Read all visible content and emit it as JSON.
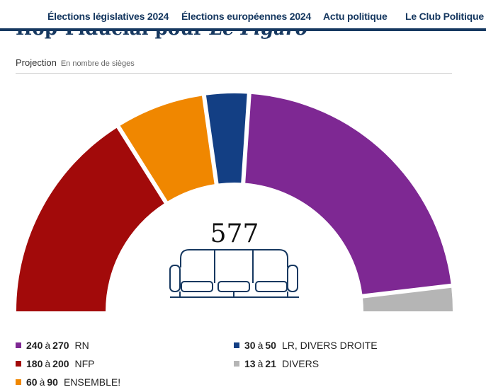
{
  "nav": {
    "items": [
      "Élections législatives 2024",
      "Élections européennes 2024",
      "Actu politique",
      "Le Club Politique"
    ]
  },
  "title": {
    "main": "Ifop-Fiducial pour",
    "italic": "Le Figaro"
  },
  "subhead": {
    "label": "Projection",
    "unit": "En nombre de sièges"
  },
  "chart_data": {
    "type": "pie",
    "variant": "parliament-half-donut",
    "title": "",
    "total_seats": 577,
    "total_label": "577",
    "center_icon": "sofa-icon",
    "range_separator": "à",
    "series": [
      {
        "name": "NFP",
        "low": 180,
        "high": 200,
        "arc_seats": 180,
        "color": "#a20a0a"
      },
      {
        "name": "ENSEMBLE!",
        "low": 60,
        "high": 90,
        "arc_seats": 75,
        "color": "#f08700"
      },
      {
        "name": "LR, DIVERS DROITE",
        "low": 30,
        "high": 50,
        "arc_seats": 37,
        "color": "#133f84"
      },
      {
        "name": "RN",
        "low": 240,
        "high": 270,
        "arc_seats": 247,
        "color": "#7e2893"
      },
      {
        "name": "DIVERS",
        "low": 13,
        "high": 21,
        "arc_seats": 21,
        "color": "#b5b5b5"
      }
    ],
    "legend": {
      "placement": "bottom",
      "order": [
        "RN",
        "NFP",
        "ENSEMBLE!",
        "LR, DIVERS DROITE",
        "DIVERS"
      ]
    }
  }
}
